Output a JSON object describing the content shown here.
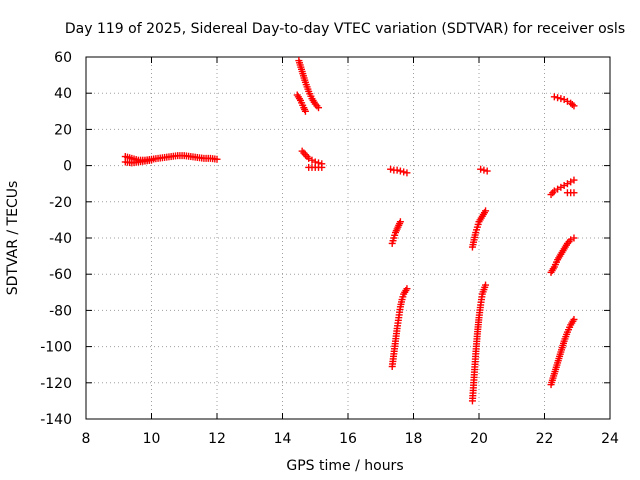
{
  "chart_data": {
    "type": "scatter",
    "title": "Day 119 of 2025, Sidereal Day-to-day VTEC variation (SDTVAR) for receiver osls",
    "xlabel": "GPS time / hours",
    "ylabel": "SDTVAR / TECUs",
    "xlim": [
      8,
      24
    ],
    "ylim": [
      -140,
      60
    ],
    "xticks": [
      8,
      10,
      12,
      14,
      16,
      18,
      20,
      22,
      24
    ],
    "yticks": [
      -140,
      -120,
      -100,
      -80,
      -60,
      -40,
      -20,
      0,
      20,
      40,
      60
    ],
    "grid": true,
    "marker": "plus",
    "color": "#ff0000",
    "segments": [
      {
        "points": [
          [
            9.2,
            5
          ],
          [
            9.4,
            4
          ],
          [
            9.6,
            3
          ],
          [
            9.8,
            3
          ],
          [
            10.0,
            3.5
          ],
          [
            10.2,
            4
          ],
          [
            10.4,
            4.5
          ],
          [
            10.6,
            5
          ],
          [
            10.8,
            5.5
          ],
          [
            11.0,
            5.5
          ],
          [
            11.2,
            5
          ],
          [
            11.4,
            4.5
          ],
          [
            11.6,
            4
          ],
          [
            11.8,
            4
          ],
          [
            12.0,
            3.5
          ]
        ]
      },
      {
        "points": [
          [
            9.2,
            2
          ],
          [
            9.4,
            1.5
          ],
          [
            9.6,
            2
          ],
          [
            9.8,
            2.5
          ],
          [
            10.0,
            3
          ]
        ]
      },
      {
        "points": [
          [
            14.5,
            58
          ],
          [
            14.6,
            52
          ],
          [
            14.7,
            46
          ],
          [
            14.8,
            41
          ],
          [
            14.9,
            37
          ],
          [
            15.0,
            34
          ],
          [
            15.1,
            32
          ]
        ]
      },
      {
        "points": [
          [
            14.45,
            39
          ],
          [
            14.55,
            36
          ],
          [
            14.65,
            32
          ],
          [
            14.7,
            30
          ]
        ]
      },
      {
        "points": [
          [
            14.6,
            8
          ],
          [
            14.7,
            6
          ],
          [
            14.8,
            4
          ],
          [
            14.9,
            3
          ],
          [
            15.0,
            2
          ],
          [
            15.1,
            1.5
          ],
          [
            15.2,
            1
          ]
        ]
      },
      {
        "points": [
          [
            14.8,
            -1
          ],
          [
            14.9,
            -1
          ],
          [
            15.0,
            -1
          ],
          [
            15.1,
            -1
          ],
          [
            15.2,
            -1
          ]
        ]
      },
      {
        "points": [
          [
            17.3,
            -2
          ],
          [
            17.4,
            -2.5
          ],
          [
            17.5,
            -2.5
          ],
          [
            17.6,
            -3
          ],
          [
            17.7,
            -3.5
          ],
          [
            17.8,
            -4
          ]
        ]
      },
      {
        "points": [
          [
            17.35,
            -43
          ],
          [
            17.4,
            -40
          ],
          [
            17.45,
            -37
          ],
          [
            17.5,
            -35
          ],
          [
            17.55,
            -33
          ],
          [
            17.6,
            -31
          ]
        ]
      },
      {
        "points": [
          [
            17.35,
            -111
          ],
          [
            17.4,
            -104
          ],
          [
            17.45,
            -97
          ],
          [
            17.5,
            -90
          ],
          [
            17.55,
            -84
          ],
          [
            17.6,
            -78
          ],
          [
            17.65,
            -74
          ],
          [
            17.7,
            -71
          ],
          [
            17.8,
            -68
          ]
        ]
      },
      {
        "points": [
          [
            20.05,
            -2
          ],
          [
            20.15,
            -2.5
          ],
          [
            20.25,
            -3
          ]
        ]
      },
      {
        "points": [
          [
            19.8,
            -45
          ],
          [
            19.85,
            -41
          ],
          [
            19.9,
            -37
          ],
          [
            19.95,
            -34
          ],
          [
            20.0,
            -31
          ],
          [
            20.1,
            -28
          ],
          [
            20.2,
            -25
          ]
        ]
      },
      {
        "points": [
          [
            19.8,
            -130
          ],
          [
            19.85,
            -117
          ],
          [
            19.9,
            -104
          ],
          [
            19.95,
            -93
          ],
          [
            20.0,
            -84
          ],
          [
            20.05,
            -77
          ],
          [
            20.1,
            -71
          ],
          [
            20.2,
            -66
          ]
        ]
      },
      {
        "points": [
          [
            22.3,
            38
          ],
          [
            22.4,
            37.5
          ],
          [
            22.5,
            37
          ],
          [
            22.6,
            36.5
          ],
          [
            22.7,
            35.5
          ],
          [
            22.8,
            34.5
          ],
          [
            22.9,
            33
          ]
        ]
      },
      {
        "points": [
          [
            22.2,
            -16
          ],
          [
            22.3,
            -14
          ],
          [
            22.4,
            -13
          ],
          [
            22.5,
            -12
          ],
          [
            22.6,
            -11
          ],
          [
            22.7,
            -10
          ],
          [
            22.8,
            -9
          ],
          [
            22.9,
            -8
          ]
        ]
      },
      {
        "points": [
          [
            22.7,
            -15
          ],
          [
            22.8,
            -15
          ],
          [
            22.9,
            -15
          ]
        ]
      },
      {
        "points": [
          [
            22.2,
            -59
          ],
          [
            22.3,
            -56
          ],
          [
            22.4,
            -52
          ],
          [
            22.5,
            -49
          ],
          [
            22.6,
            -46
          ],
          [
            22.7,
            -43
          ],
          [
            22.8,
            -41
          ],
          [
            22.9,
            -40
          ]
        ]
      },
      {
        "points": [
          [
            22.2,
            -121
          ],
          [
            22.3,
            -115
          ],
          [
            22.4,
            -109
          ],
          [
            22.5,
            -103
          ],
          [
            22.6,
            -97
          ],
          [
            22.7,
            -92
          ],
          [
            22.8,
            -88
          ],
          [
            22.9,
            -85
          ]
        ]
      }
    ]
  }
}
